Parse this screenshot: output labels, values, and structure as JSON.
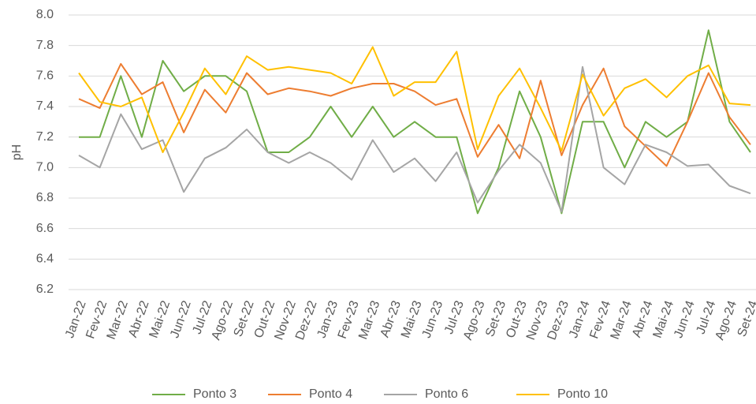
{
  "chart_data": {
    "type": "line",
    "y_label": "pH",
    "categories": [
      "Jan-22",
      "Fev-22",
      "Mar-22",
      "Abr-22",
      "Mai-22",
      "Jun-22",
      "Jul-22",
      "Ago-22",
      "Set-22",
      "Out-22",
      "Nov-22",
      "Dez-22",
      "Jan-23",
      "Fev-23",
      "Mar-23",
      "Abr-23",
      "Mai-23",
      "Jun-23",
      "Jul-23",
      "Ago-23",
      "Set-23",
      "Out-23",
      "Nov-23",
      "Dez-23",
      "Jan-24",
      "Fev-24",
      "Mar-24",
      "Abr-24",
      "Mai-24",
      "Jun-24",
      "Jul-24",
      "Ago-24",
      "Set-24"
    ],
    "series": [
      {
        "name": "Ponto 3",
        "color": "#70ad47",
        "values": [
          7.2,
          7.2,
          7.6,
          7.2,
          7.7,
          7.5,
          7.6,
          7.6,
          7.5,
          7.1,
          7.1,
          7.2,
          7.4,
          7.2,
          7.4,
          7.2,
          7.3,
          7.2,
          7.2,
          6.7,
          7.0,
          7.5,
          7.2,
          6.7,
          7.3,
          7.3,
          7.0,
          7.3,
          7.2,
          7.3,
          7.9,
          7.3,
          7.1
        ]
      },
      {
        "name": "Ponto 4",
        "color": "#ed7d31",
        "values": [
          7.45,
          7.39,
          7.68,
          7.48,
          7.56,
          7.23,
          7.51,
          7.36,
          7.62,
          7.48,
          7.52,
          7.5,
          7.47,
          7.52,
          7.55,
          7.55,
          7.5,
          7.41,
          7.45,
          7.07,
          7.28,
          7.06,
          7.57,
          7.08,
          7.41,
          7.65,
          7.27,
          7.14,
          7.01,
          7.3,
          7.62,
          7.33,
          7.15
        ]
      },
      {
        "name": "Ponto 6",
        "color": "#a5a5a5",
        "values": [
          7.08,
          7.0,
          7.35,
          7.12,
          7.18,
          6.84,
          7.06,
          7.13,
          7.25,
          7.1,
          7.03,
          7.1,
          7.03,
          6.92,
          7.18,
          6.97,
          7.06,
          6.91,
          7.1,
          6.77,
          6.98,
          7.15,
          7.03,
          6.71,
          7.66,
          7.0,
          6.89,
          7.15,
          7.1,
          7.01,
          7.02,
          6.88,
          6.83
        ]
      },
      {
        "name": "Ponto 10",
        "color": "#ffc000",
        "values": [
          7.62,
          7.43,
          7.4,
          7.46,
          7.1,
          7.36,
          7.65,
          7.48,
          7.73,
          7.64,
          7.66,
          7.64,
          7.62,
          7.55,
          7.79,
          7.47,
          7.56,
          7.56,
          7.76,
          7.12,
          7.47,
          7.65,
          7.39,
          7.11,
          7.61,
          7.34,
          7.52,
          7.58,
          7.46,
          7.6,
          7.67,
          7.42,
          7.41
        ]
      }
    ],
    "ylim": [
      6.2,
      8.0
    ],
    "yticks": [
      6.2,
      6.4,
      6.6,
      6.8,
      {
        "value": 7.0,
        "label": "7.0"
      },
      7.2,
      7.4,
      7.6,
      7.8,
      {
        "value": 8.0,
        "label": "8.0"
      }
    ],
    "grid": true,
    "legend": "bottom"
  }
}
